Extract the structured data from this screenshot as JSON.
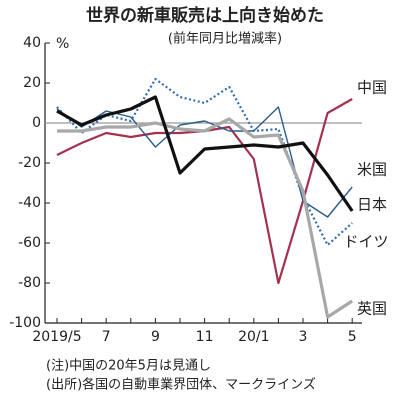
{
  "chart_data": {
    "type": "line",
    "title": "世界の新車販売は上向き始めた",
    "subtitle": "(前年同月比増減率)",
    "y_unit": "%",
    "categories": [
      "2019/5",
      null,
      "7",
      null,
      "9",
      null,
      "11",
      null,
      "20/1",
      null,
      "3",
      null,
      "5"
    ],
    "ylim": [
      -100,
      40
    ],
    "yticks": [
      40,
      20,
      0,
      -20,
      -40,
      -60,
      -80,
      -100
    ],
    "zero_line": true,
    "series": [
      {
        "name": "中国",
        "color": "#a3324e",
        "width": 2.2,
        "dash": "solid",
        "values": [
          -16,
          -10,
          -5,
          -7,
          -5,
          -5,
          -4,
          -2,
          -18,
          -80,
          -39,
          5,
          12
        ]
      },
      {
        "name": "米国",
        "color": "#2b5c8a",
        "width": 1.4,
        "dash": "solid",
        "values": [
          7,
          -2,
          6,
          3,
          -12,
          -1,
          1,
          -4,
          -4,
          8,
          -39,
          -47,
          -32
        ]
      },
      {
        "name": "ドイツ",
        "color": "#2f6db0",
        "width": 2.2,
        "dash": "dotted",
        "values": [
          8,
          -5,
          4,
          1,
          22,
          13,
          10,
          18,
          -4,
          -3,
          -37,
          -61,
          -50
        ]
      },
      {
        "name": "英国",
        "color": "#a8a8a8",
        "width": 3.2,
        "dash": "solid",
        "values": [
          -4,
          -4,
          -2,
          -2,
          0,
          -3,
          -4,
          2,
          -7,
          -6,
          -34,
          -97,
          -89
        ]
      },
      {
        "name": "日本",
        "color": "#111111",
        "width": 3.2,
        "dash": "solid",
        "values": [
          6,
          -1,
          4,
          7,
          13,
          -25,
          -13,
          -12,
          -11,
          -12,
          -10,
          -26,
          -44
        ]
      }
    ],
    "notes": [
      "(注)中国の20年5月は見通し",
      "(出所)各国の自動車業界団体、マークラインズ"
    ]
  }
}
